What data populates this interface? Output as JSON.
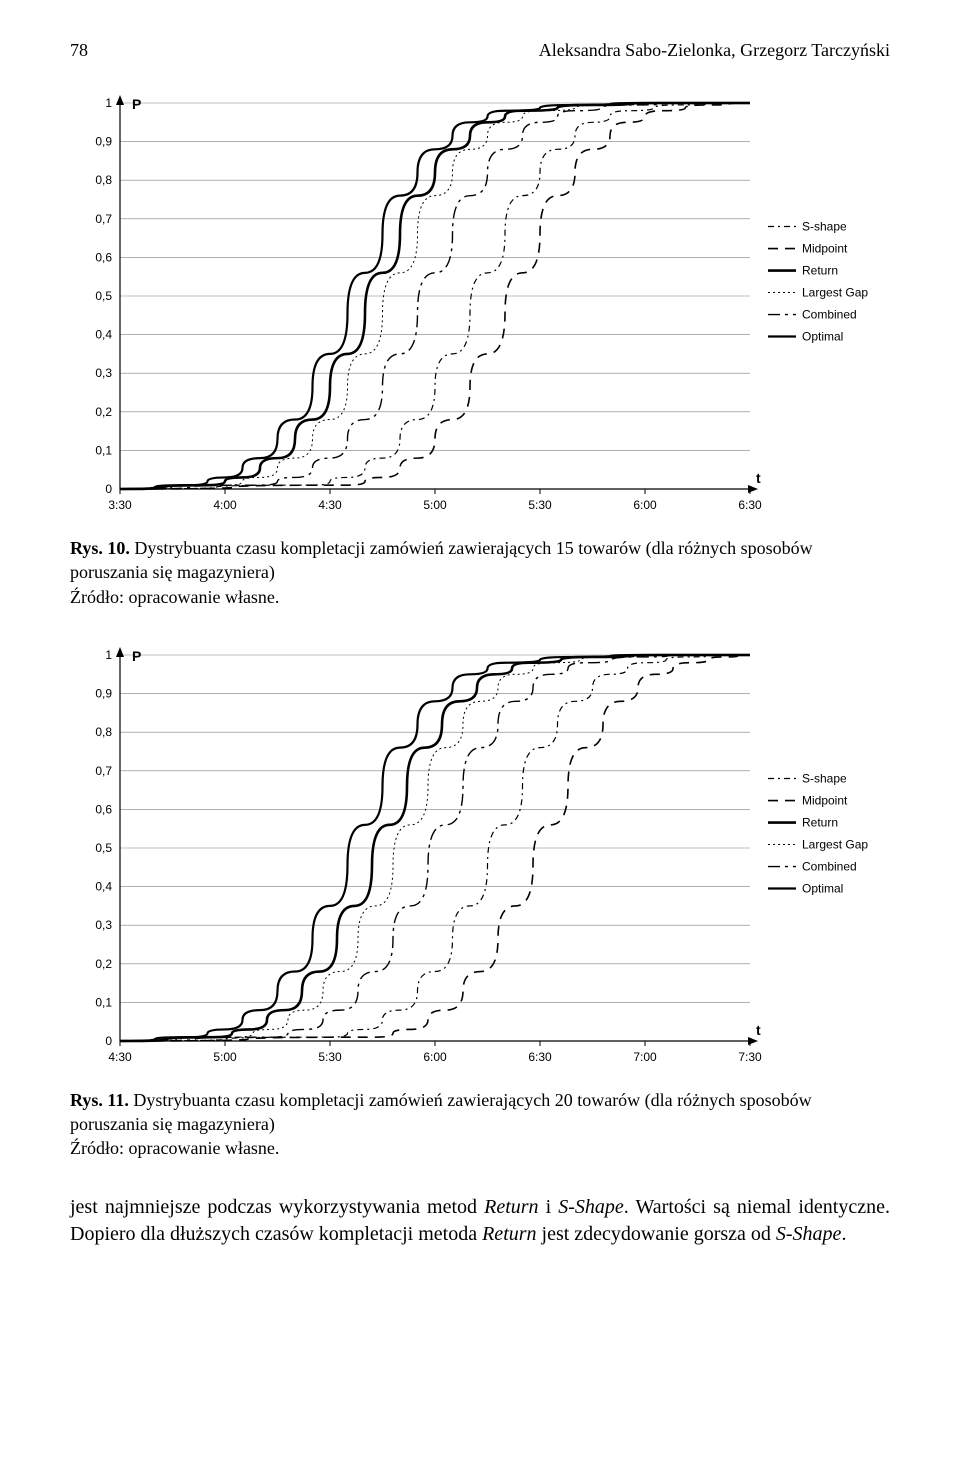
{
  "header": {
    "page_number": "78",
    "authors": "Aleksandra Sabo-Zielonka, Grzegorz Tarczyński"
  },
  "shared_chart_style": {
    "background_color": "#ffffff",
    "plot_border_color": "#000000",
    "grid_color": "#808080",
    "grid_width": 0.6,
    "axis_font_size": 12,
    "axis_font_color": "#000000",
    "y_axis_label": "P",
    "x_axis_label": "t",
    "axis_label_font_weight": "bold",
    "legend_font_size": 12,
    "legend_font_color": "#000000",
    "y_ticks": [
      0,
      0.1,
      0.2,
      0.3,
      0.4,
      0.5,
      0.6,
      0.7,
      0.8,
      0.9,
      1
    ],
    "y_tick_labels": [
      "0",
      "0,1",
      "0,2",
      "0,3",
      "0,4",
      "0,5",
      "0,6",
      "0,7",
      "0,8",
      "0,9",
      "1"
    ],
    "ylim": [
      0,
      1
    ],
    "series_style": {
      "S-shape": {
        "color": "#000000",
        "width": 1.2,
        "dash": "6 4 2 4"
      },
      "Midpoint": {
        "color": "#000000",
        "width": 1.6,
        "dash": "10 7"
      },
      "Return": {
        "color": "#000000",
        "width": 2.6,
        "dash": ""
      },
      "Largest Gap": {
        "color": "#000000",
        "width": 1.0,
        "dash": "2 3"
      },
      "Combined": {
        "color": "#000000",
        "width": 1.4,
        "dash": "12 5 3 5"
      },
      "Optimal": {
        "color": "#000000",
        "width": 2.2,
        "dash": ""
      }
    },
    "legend_order": [
      "S-shape",
      "Midpoint",
      "Return",
      "Largest Gap",
      "Combined",
      "Optimal"
    ]
  },
  "chart1": {
    "type": "line",
    "x_ticks": [
      "3:30",
      "4:00",
      "4:30",
      "5:00",
      "5:30",
      "6:00",
      "6:30"
    ],
    "xlim_minutes": [
      210,
      390
    ],
    "series": {
      "Optimal": {
        "x": [
          210,
          230,
          240,
          250,
          260,
          270,
          280,
          290,
          300,
          310,
          320,
          340,
          360,
          390
        ],
        "y": [
          0,
          0.01,
          0.03,
          0.08,
          0.18,
          0.35,
          0.56,
          0.76,
          0.88,
          0.95,
          0.98,
          0.995,
          1,
          1
        ]
      },
      "Return": {
        "x": [
          210,
          235,
          245,
          255,
          265,
          275,
          285,
          295,
          305,
          315,
          325,
          345,
          365,
          390
        ],
        "y": [
          0,
          0.01,
          0.03,
          0.08,
          0.18,
          0.35,
          0.56,
          0.76,
          0.88,
          0.95,
          0.98,
          0.995,
          1,
          1
        ]
      },
      "Largest Gap": {
        "x": [
          210,
          240,
          250,
          260,
          270,
          280,
          290,
          300,
          310,
          320,
          330,
          350,
          370,
          390
        ],
        "y": [
          0,
          0.01,
          0.03,
          0.08,
          0.18,
          0.35,
          0.56,
          0.76,
          0.88,
          0.95,
          0.98,
          0.995,
          1,
          1
        ]
      },
      "Combined": {
        "x": [
          210,
          250,
          260,
          270,
          280,
          290,
          300,
          310,
          320,
          330,
          340,
          355,
          375,
          390
        ],
        "y": [
          0,
          0.01,
          0.03,
          0.08,
          0.18,
          0.35,
          0.56,
          0.76,
          0.88,
          0.95,
          0.98,
          0.995,
          1,
          1
        ]
      },
      "S-shape": {
        "x": [
          210,
          265,
          275,
          285,
          295,
          305,
          315,
          325,
          335,
          345,
          355,
          370,
          385,
          390
        ],
        "y": [
          0,
          0.01,
          0.03,
          0.08,
          0.18,
          0.35,
          0.56,
          0.76,
          0.88,
          0.95,
          0.98,
          0.995,
          1,
          1
        ]
      },
      "Midpoint": {
        "x": [
          210,
          275,
          285,
          295,
          305,
          315,
          325,
          335,
          345,
          355,
          365,
          378,
          390,
          390
        ],
        "y": [
          0,
          0.01,
          0.03,
          0.08,
          0.18,
          0.35,
          0.56,
          0.76,
          0.88,
          0.95,
          0.98,
          0.995,
          1,
          1
        ]
      }
    }
  },
  "caption1": {
    "label": "Rys. 10.",
    "text": "Dystrybuanta czasu kompletacji zamówień zawierających 15 towarów (dla różnych sposobów poruszania się magazyniera)"
  },
  "source1": "Źródło: opracowanie własne.",
  "chart2": {
    "type": "line",
    "x_ticks": [
      "4:30",
      "5:00",
      "5:30",
      "6:00",
      "6:30",
      "7:00",
      "7:30"
    ],
    "xlim_minutes": [
      270,
      450
    ],
    "series": {
      "Optimal": {
        "x": [
          270,
          290,
          300,
          310,
          320,
          330,
          340,
          350,
          360,
          370,
          380,
          400,
          420,
          450
        ],
        "y": [
          0,
          0.01,
          0.03,
          0.08,
          0.18,
          0.35,
          0.56,
          0.76,
          0.88,
          0.95,
          0.98,
          0.995,
          1,
          1
        ]
      },
      "Return": {
        "x": [
          270,
          297,
          307,
          317,
          327,
          337,
          347,
          357,
          367,
          377,
          387,
          405,
          425,
          450
        ],
        "y": [
          0,
          0.01,
          0.03,
          0.08,
          0.18,
          0.35,
          0.56,
          0.76,
          0.88,
          0.95,
          0.98,
          0.995,
          1,
          1
        ]
      },
      "Largest Gap": {
        "x": [
          270,
          303,
          313,
          323,
          333,
          343,
          353,
          363,
          373,
          383,
          393,
          410,
          430,
          450
        ],
        "y": [
          0,
          0.01,
          0.03,
          0.08,
          0.18,
          0.35,
          0.56,
          0.76,
          0.88,
          0.95,
          0.98,
          0.995,
          1,
          1
        ]
      },
      "Combined": {
        "x": [
          270,
          313,
          323,
          333,
          343,
          353,
          363,
          373,
          383,
          393,
          403,
          418,
          435,
          450
        ],
        "y": [
          0,
          0.01,
          0.03,
          0.08,
          0.18,
          0.35,
          0.56,
          0.76,
          0.88,
          0.95,
          0.98,
          0.995,
          1,
          1
        ]
      },
      "S-shape": {
        "x": [
          270,
          330,
          340,
          350,
          360,
          370,
          380,
          390,
          400,
          410,
          420,
          432,
          445,
          450
        ],
        "y": [
          0,
          0.01,
          0.03,
          0.08,
          0.18,
          0.35,
          0.56,
          0.76,
          0.88,
          0.95,
          0.98,
          0.995,
          1,
          1
        ]
      },
      "Midpoint": {
        "x": [
          270,
          343,
          353,
          363,
          373,
          383,
          393,
          403,
          413,
          423,
          433,
          443,
          450,
          450
        ],
        "y": [
          0,
          0.01,
          0.03,
          0.08,
          0.18,
          0.35,
          0.56,
          0.76,
          0.88,
          0.95,
          0.98,
          0.995,
          1,
          1
        ]
      }
    }
  },
  "caption2": {
    "label": "Rys. 11.",
    "text": "Dystrybuanta czasu kompletacji zamówień zawierających 20 towarów (dla różnych sposobów poruszania się magazyniera)"
  },
  "source2": "Źródło: opracowanie własne.",
  "body_paragraph": {
    "pre": "jest najmniejsze podczas wykorzystywania metod ",
    "i1": "Return",
    "mid1": " i ",
    "i2": "S-Shape",
    "mid2": ". Wartości są niemal identyczne. Dopiero dla dłuższych czasów kompletacji metoda ",
    "i3": "Return",
    "mid3": " jest zdecydowanie gorsza od ",
    "i4": "S-Shape",
    "post": "."
  }
}
